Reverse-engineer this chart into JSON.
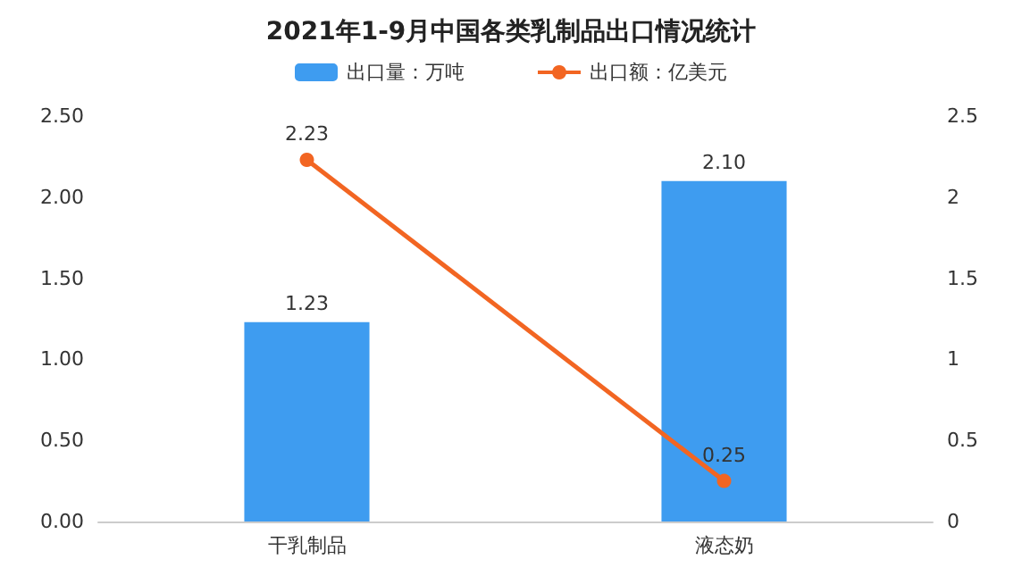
{
  "chart_data": {
    "type": "bar",
    "title": "2021年1-9月中国各类乳制品出口情况统计",
    "categories": [
      "干乳制品",
      "液态奶"
    ],
    "series": [
      {
        "name": "出口量：万吨",
        "color": "#3e9cf0",
        "values": [
          1.23,
          2.1
        ],
        "value_labels": [
          "1.23",
          "2.10"
        ]
      },
      {
        "name": "出口额：亿美元",
        "type": "line",
        "axis": "y2",
        "color": "#f26522",
        "values": [
          2.23,
          0.25
        ],
        "value_labels": [
          "2.23",
          "0.25"
        ]
      }
    ],
    "ylim": [
      0,
      2.5
    ],
    "yticks": [
      {
        "value": 0,
        "label": "0.00"
      },
      {
        "value": 0.5,
        "label": "0.50"
      },
      {
        "value": 1,
        "label": "1.00"
      },
      {
        "value": 1.5,
        "label": "1.50"
      },
      {
        "value": 2,
        "label": "2.00"
      },
      {
        "value": 2.5,
        "label": "2.50"
      }
    ],
    "y2lim": [
      0,
      2.5
    ],
    "y2ticks": [
      0,
      0.5,
      1,
      1.5,
      2,
      2.5
    ],
    "legend": "top",
    "marker": "circle",
    "grid": false
  }
}
